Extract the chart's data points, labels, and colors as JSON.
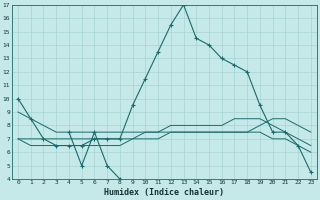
{
  "xlabel": "Humidex (Indice chaleur)",
  "background_color": "#c5e8e8",
  "grid_color": "#a8d4d4",
  "line_color": "#1a6b6b",
  "x_values": [
    0,
    1,
    2,
    3,
    4,
    5,
    6,
    7,
    8,
    9,
    10,
    11,
    12,
    13,
    14,
    15,
    16,
    17,
    18,
    19,
    20,
    21,
    22,
    23
  ],
  "line_main": [
    10.0,
    8.5,
    7.0,
    6.5,
    6.5,
    6.5,
    7.0,
    7.0,
    7.0,
    9.5,
    11.5,
    13.5,
    15.5,
    17.0,
    14.5,
    14.0,
    13.0,
    12.5,
    12.0,
    9.5,
    7.5,
    7.5,
    6.5,
    4.5
  ],
  "line_dip": [
    null,
    null,
    null,
    null,
    7.5,
    5.0,
    7.5,
    5.0,
    4.0,
    null,
    null,
    null,
    null,
    null,
    null,
    null,
    null,
    null,
    null,
    null,
    null,
    null,
    null,
    null
  ],
  "line_upper": [
    9.0,
    8.5,
    8.0,
    7.5,
    7.5,
    7.5,
    7.5,
    7.5,
    7.5,
    7.5,
    7.5,
    7.5,
    7.5,
    7.5,
    7.5,
    7.5,
    7.5,
    7.5,
    7.5,
    8.0,
    8.5,
    8.5,
    8.0,
    7.5
  ],
  "line_mid": [
    7.0,
    7.0,
    7.0,
    7.0,
    7.0,
    7.0,
    7.0,
    7.0,
    7.0,
    7.0,
    7.5,
    7.5,
    8.0,
    8.0,
    8.0,
    8.0,
    8.0,
    8.5,
    8.5,
    8.5,
    8.0,
    7.5,
    7.0,
    6.5
  ],
  "line_lower": [
    7.0,
    6.5,
    6.5,
    6.5,
    6.5,
    6.5,
    6.5,
    6.5,
    6.5,
    7.0,
    7.0,
    7.0,
    7.5,
    7.5,
    7.5,
    7.5,
    7.5,
    7.5,
    7.5,
    7.5,
    7.0,
    7.0,
    6.5,
    6.0
  ],
  "ylim": [
    4,
    17
  ],
  "xlim": [
    -0.5,
    23.5
  ],
  "yticks": [
    4,
    5,
    6,
    7,
    8,
    9,
    10,
    11,
    12,
    13,
    14,
    15,
    16,
    17
  ],
  "xticks": [
    0,
    1,
    2,
    3,
    4,
    5,
    6,
    7,
    8,
    9,
    10,
    11,
    12,
    13,
    14,
    15,
    16,
    17,
    18,
    19,
    20,
    21,
    22,
    23
  ]
}
